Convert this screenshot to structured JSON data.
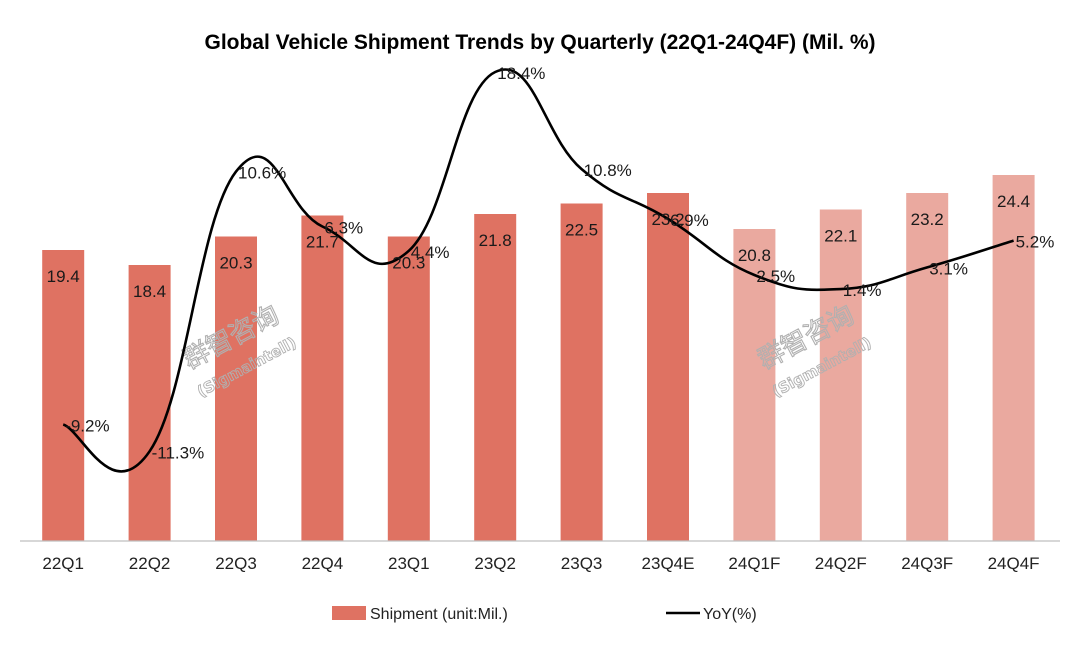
{
  "chart_data": {
    "type": "bar",
    "title": "Global Vehicle Shipment Trends by Quarterly (22Q1-24Q4F) (Mil. %)",
    "categories": [
      "22Q1",
      "22Q2",
      "22Q3",
      "22Q4",
      "23Q1",
      "23Q2",
      "23Q3",
      "23Q4E",
      "24Q1F",
      "24Q2F",
      "24Q3F",
      "24Q4F"
    ],
    "series": [
      {
        "name": "Shipment (unit:Mil.)",
        "type": "bar",
        "values": [
          19.4,
          18.4,
          20.3,
          21.7,
          20.3,
          21.8,
          22.5,
          23.2,
          20.8,
          22.1,
          23.2,
          24.4
        ],
        "labels": [
          "19.4",
          "18.4",
          "20.3",
          "21.7",
          "20.3",
          "21.8",
          "22.5",
          "23.2",
          "20.8",
          "22.1",
          "23.2",
          "24.4"
        ],
        "forecast_from_index": 8
      },
      {
        "name": "YoY(%)",
        "type": "line",
        "values": [
          -9.2,
          -11.3,
          10.6,
          6.3,
          4.4,
          18.4,
          10.8,
          6.9,
          2.5,
          1.4,
          3.1,
          5.2
        ],
        "labels": [
          "-9.2%",
          "-11.3%",
          "10.6%",
          "6.3%",
          "4.4%",
          "18.4%",
          "10.8%",
          "6.9%",
          "2.5%",
          "1.4%",
          "3.1%",
          "5.2%"
        ]
      }
    ],
    "xlabel": "",
    "ylabel": "",
    "ylim_bar": [
      0,
      25.5
    ],
    "ylim_line": [
      -14,
      20
    ],
    "legend_position": "bottom",
    "grid": false
  },
  "colors": {
    "bar_actual": "#df7262",
    "bar_forecast": "#eaa99f",
    "line": "#000000",
    "axis": "#bfbfbf"
  },
  "watermark": {
    "brand": "群智咨询",
    "sub": "(Sigmaintell)"
  }
}
